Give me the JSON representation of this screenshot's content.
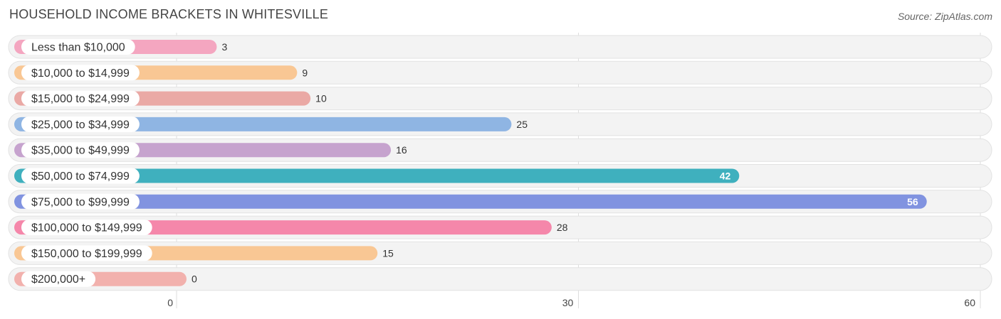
{
  "header": {
    "title": "HOUSEHOLD INCOME BRACKETS IN WHITESVILLE",
    "source": "Source: ZipAtlas.com"
  },
  "chart_data": {
    "type": "bar",
    "orientation": "horizontal",
    "title": "HOUSEHOLD INCOME BRACKETS IN WHITESVILLE",
    "xlabel": "",
    "ylabel": "",
    "xlim": [
      0,
      60
    ],
    "xticks": [
      0,
      30,
      60
    ],
    "grid": true,
    "categories": [
      "Less than $10,000",
      "$10,000 to $14,999",
      "$15,000 to $24,999",
      "$25,000 to $34,999",
      "$35,000 to $49,999",
      "$50,000 to $74,999",
      "$75,000 to $99,999",
      "$100,000 to $149,999",
      "$150,000 to $199,999",
      "$200,000+"
    ],
    "values": [
      3,
      9,
      10,
      25,
      16,
      42,
      56,
      28,
      15,
      0
    ],
    "colors": [
      "#f4a6c0",
      "#f9c794",
      "#eaa9a5",
      "#8fb5e3",
      "#c6a3ce",
      "#3fb0be",
      "#8193e0",
      "#f587aa",
      "#f9c794",
      "#f2b1ad"
    ],
    "value_label_inside": [
      false,
      false,
      false,
      false,
      false,
      true,
      true,
      false,
      false,
      false
    ]
  }
}
